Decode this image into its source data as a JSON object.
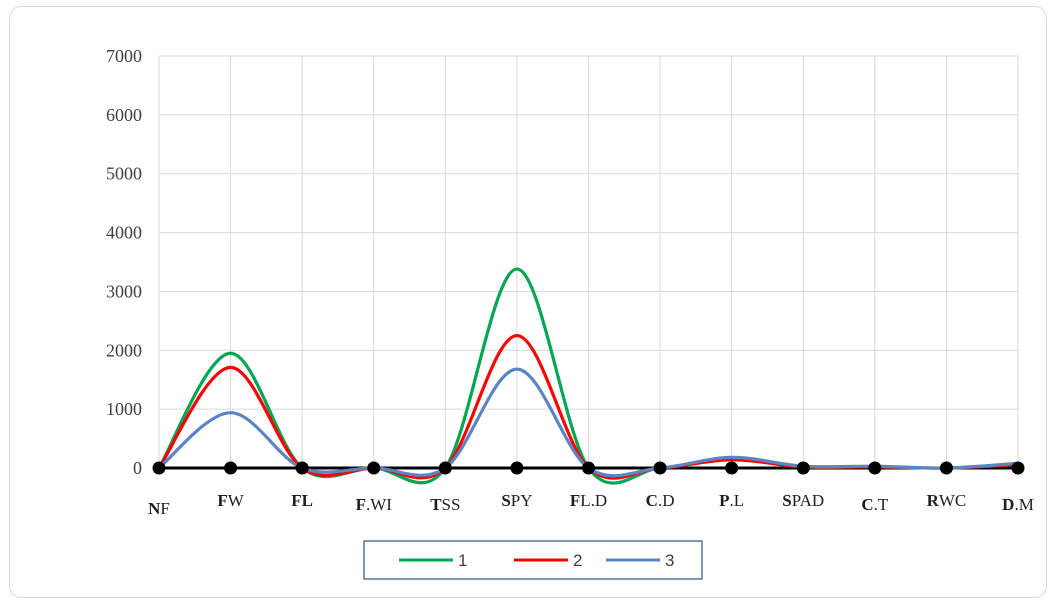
{
  "chart_data": {
    "type": "line",
    "title": "",
    "xlabel": "",
    "ylabel": "",
    "ylim": [
      0,
      7000
    ],
    "yticks": [
      "0",
      "1000",
      "2000",
      "3000",
      "4000",
      "5000",
      "6000",
      "7000"
    ],
    "categories": [
      {
        "bold": "N",
        "rest": "F"
      },
      {
        "bold": "F",
        "rest": "W"
      },
      {
        "bold": "FL",
        "rest": ""
      },
      {
        "bold": "F",
        "rest": ".WI"
      },
      {
        "bold": "T",
        "rest": "SS"
      },
      {
        "bold": "S",
        "rest": "PY"
      },
      {
        "bold": "F",
        "rest": "L.D"
      },
      {
        "bold": "C",
        "rest": ".D"
      },
      {
        "bold": "P",
        "rest": ".L"
      },
      {
        "bold": "S",
        "rest": "PAD"
      },
      {
        "bold": "C",
        "rest": ".T"
      },
      {
        "bold": "R",
        "rest": "WC"
      },
      {
        "bold": "D",
        "rest": ".M"
      }
    ],
    "series": [
      {
        "name": "1",
        "color": "#00a651",
        "values": [
          0,
          1950,
          0,
          0,
          0,
          3380,
          0,
          0,
          150,
          20,
          20,
          0,
          60
        ]
      },
      {
        "name": "2",
        "color": "#ff0000",
        "values": [
          0,
          1710,
          0,
          0,
          0,
          2250,
          0,
          0,
          140,
          20,
          20,
          0,
          60
        ]
      },
      {
        "name": "3",
        "color": "#5b84c4",
        "values": [
          0,
          940,
          0,
          0,
          0,
          1680,
          0,
          0,
          180,
          30,
          30,
          0,
          80
        ]
      },
      {
        "name": "",
        "color": "#000000",
        "values": [
          0,
          0,
          0,
          0,
          0,
          0,
          0,
          0,
          0,
          0,
          0,
          0,
          0
        ],
        "marker": "circle"
      }
    ],
    "grid": true,
    "legend_position": "bottom-center"
  }
}
